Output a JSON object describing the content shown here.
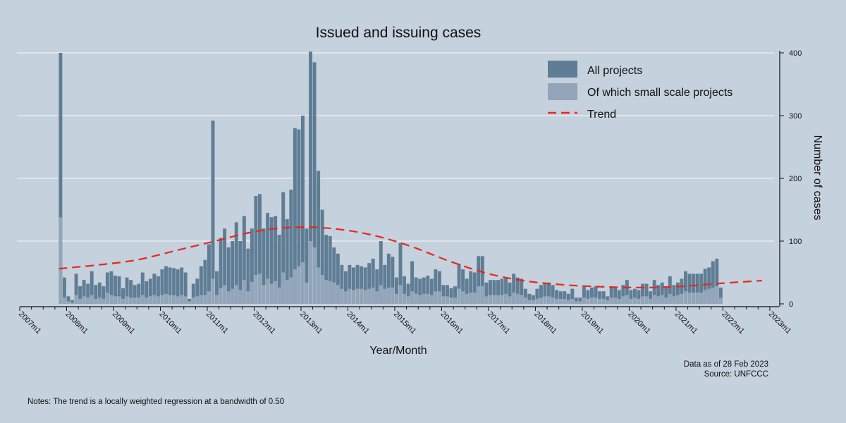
{
  "chart_data": {
    "type": "bar",
    "title": "Issued and issuing cases",
    "xlabel": "Year/Month",
    "ylabel": "Number of cases",
    "ylim": [
      0,
      400
    ],
    "yticks": [
      0,
      100,
      200,
      300,
      400
    ],
    "x_start": "2007m1",
    "x_end": "2023m2",
    "xticks": [
      "2007m1",
      "2008m1",
      "2009m1",
      "2010m1",
      "2011m1",
      "2012m1",
      "2013m1",
      "2014m1",
      "2015m1",
      "2016m1",
      "2017m1",
      "2018m1",
      "2019m1",
      "2020m1",
      "2021m1",
      "2022m1",
      "2023m1"
    ],
    "legend_position": "top-right",
    "grid": true,
    "series": [
      {
        "name": "All projects",
        "color": "#5f7d94",
        "values": [
          400,
          42,
          12,
          6,
          48,
          28,
          38,
          32,
          52,
          30,
          34,
          28,
          50,
          52,
          45,
          44,
          25,
          42,
          38,
          30,
          32,
          50,
          36,
          40,
          48,
          44,
          55,
          60,
          58,
          57,
          55,
          58,
          50,
          8,
          32,
          40,
          60,
          70,
          95,
          292,
          52,
          105,
          120,
          90,
          100,
          130,
          100,
          140,
          88,
          120,
          172,
          175,
          120,
          145,
          138,
          140,
          110,
          178,
          135,
          182,
          280,
          278,
          300,
          120,
          402,
          385,
          212,
          150,
          110,
          108,
          90,
          80,
          62,
          52,
          62,
          58,
          62,
          60,
          58,
          65,
          72,
          55,
          100,
          62,
          80,
          75,
          42,
          97,
          44,
          32,
          68,
          42,
          40,
          42,
          45,
          40,
          55,
          52,
          30,
          30,
          25,
          28,
          64,
          55,
          40,
          52,
          50,
          76,
          76,
          34,
          38,
          38,
          38,
          40,
          42,
          34,
          48,
          42,
          40,
          24,
          16,
          14,
          24,
          30,
          34,
          34,
          30,
          22,
          20,
          20,
          16,
          24,
          10,
          10,
          28,
          22,
          26,
          28,
          20,
          20,
          12,
          28,
          26,
          22,
          30,
          38,
          22,
          24,
          22,
          32,
          32,
          20,
          38,
          30,
          34,
          28,
          44,
          30,
          34,
          40,
          52,
          48,
          48,
          48,
          48,
          56,
          58,
          68,
          72,
          26
        ]
      },
      {
        "name": "Of which small scale projects",
        "color": "#93a6b9",
        "values": [
          138,
          10,
          4,
          2,
          14,
          8,
          12,
          10,
          14,
          8,
          10,
          8,
          18,
          14,
          12,
          12,
          8,
          12,
          10,
          10,
          10,
          14,
          10,
          12,
          14,
          12,
          14,
          16,
          14,
          14,
          12,
          14,
          12,
          4,
          10,
          12,
          14,
          14,
          20,
          40,
          14,
          25,
          30,
          20,
          24,
          30,
          22,
          38,
          20,
          35,
          46,
          48,
          30,
          40,
          32,
          36,
          26,
          50,
          38,
          42,
          55,
          60,
          66,
          34,
          100,
          90,
          58,
          46,
          38,
          36,
          34,
          30,
          24,
          20,
          24,
          22,
          24,
          24,
          22,
          24,
          26,
          20,
          30,
          24,
          26,
          26,
          16,
          30,
          16,
          12,
          20,
          16,
          14,
          16,
          16,
          14,
          20,
          20,
          12,
          12,
          10,
          10,
          24,
          20,
          16,
          18,
          18,
          28,
          28,
          12,
          14,
          14,
          14,
          14,
          16,
          12,
          18,
          16,
          14,
          10,
          6,
          6,
          8,
          10,
          12,
          12,
          10,
          8,
          8,
          8,
          6,
          8,
          4,
          4,
          10,
          8,
          10,
          10,
          8,
          8,
          6,
          10,
          10,
          8,
          12,
          14,
          8,
          10,
          8,
          12,
          12,
          8,
          14,
          12,
          14,
          10,
          16,
          12,
          14,
          16,
          20,
          18,
          18,
          18,
          18,
          22,
          24,
          26,
          28,
          10
        ]
      },
      {
        "name": "Trend",
        "color": "#e8271f",
        "style": "dashed",
        "x_months": [
          10,
          20,
          30,
          40,
          50,
          60,
          70,
          80,
          90,
          100,
          110,
          120,
          130,
          140,
          150,
          160,
          170,
          180,
          190
        ],
        "values": [
          56,
          62,
          70,
          85,
          100,
          115,
          122,
          120,
          110,
          92,
          68,
          48,
          36,
          30,
          27,
          26,
          28,
          33,
          37
        ]
      }
    ],
    "annotations": {
      "data_as_of": "Data as of 28 Feb 2023",
      "source": "Source: UNFCCC",
      "notes": "Notes: The trend is a locally weighted regression at a bandwidth of 0.50"
    }
  }
}
